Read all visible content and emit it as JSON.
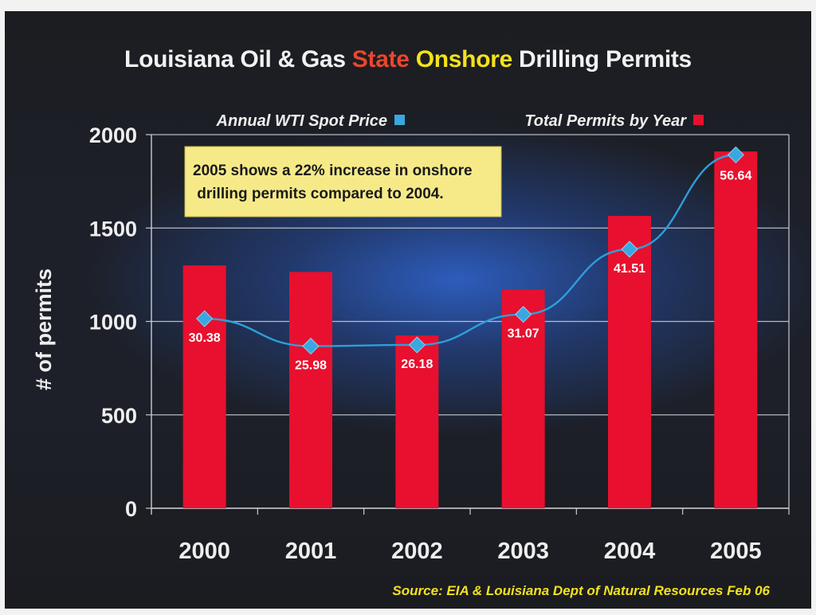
{
  "title": {
    "part1": "Louisiana Oil & Gas ",
    "part2": "State",
    "part3": " ",
    "part4": "Onshore",
    "part5": " Drilling Permits"
  },
  "source": "Source:  EIA & Louisiana Dept of Natural Resources Feb 06",
  "colors": {
    "bar": "#e8102e",
    "line": "#2e9fd8",
    "marker": "#3aa8e0",
    "grid": "#c8cbd2",
    "text": "#eeeeee",
    "annotation_bg": "#f6ea88"
  },
  "chart_data": {
    "type": "bar",
    "categories": [
      "2000",
      "2001",
      "2002",
      "2003",
      "2004",
      "2005"
    ],
    "ylabel": "# of permits",
    "ylim": [
      0,
      2000
    ],
    "yticks": [
      0,
      500,
      1000,
      1500,
      2000
    ],
    "grid": true,
    "legend_position": "top",
    "series": [
      {
        "name": "Total Permits by Year",
        "type": "bar",
        "values": [
          1300,
          1265,
          925,
          1170,
          1565,
          1910
        ]
      },
      {
        "name": "Annual WTI Spot Price",
        "type": "line",
        "values": [
          30.38,
          25.98,
          26.18,
          31.07,
          41.51,
          56.64
        ]
      }
    ],
    "annotation": "2005 shows a 22% increase in onshore\n drilling permits compared to 2004."
  }
}
